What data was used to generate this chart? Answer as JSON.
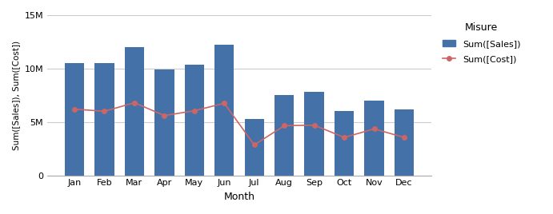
{
  "months": [
    "Jan",
    "Feb",
    "Mar",
    "Apr",
    "May",
    "Jun",
    "Jul",
    "Aug",
    "Sep",
    "Oct",
    "Nov",
    "Dec"
  ],
  "sales": [
    10500000,
    10500000,
    12000000,
    9900000,
    10400000,
    12200000,
    5300000,
    7500000,
    7800000,
    6000000,
    7000000,
    6200000
  ],
  "cost": [
    6200000,
    6000000,
    6800000,
    5600000,
    6050000,
    6750000,
    2850000,
    4650000,
    4700000,
    3550000,
    4350000,
    3550000
  ],
  "bar_color": "#4472A8",
  "line_color": "#CC6666",
  "marker": "o",
  "xlabel": "Month",
  "ylabel": "Sum([Sales]), Sum([Cost])",
  "legend_title": "Misure",
  "legend_sales": "Sum([Sales])",
  "legend_cost": "Sum([Cost])",
  "ylim": [
    0,
    15000000
  ],
  "yticks": [
    0,
    5000000,
    10000000,
    15000000
  ],
  "ytick_labels": [
    "0",
    "5M",
    "10M",
    "15M"
  ],
  "background_color": "#ffffff",
  "plot_bg_color": "#ffffff",
  "grid_color": "#cccccc",
  "bar_width": 0.65
}
